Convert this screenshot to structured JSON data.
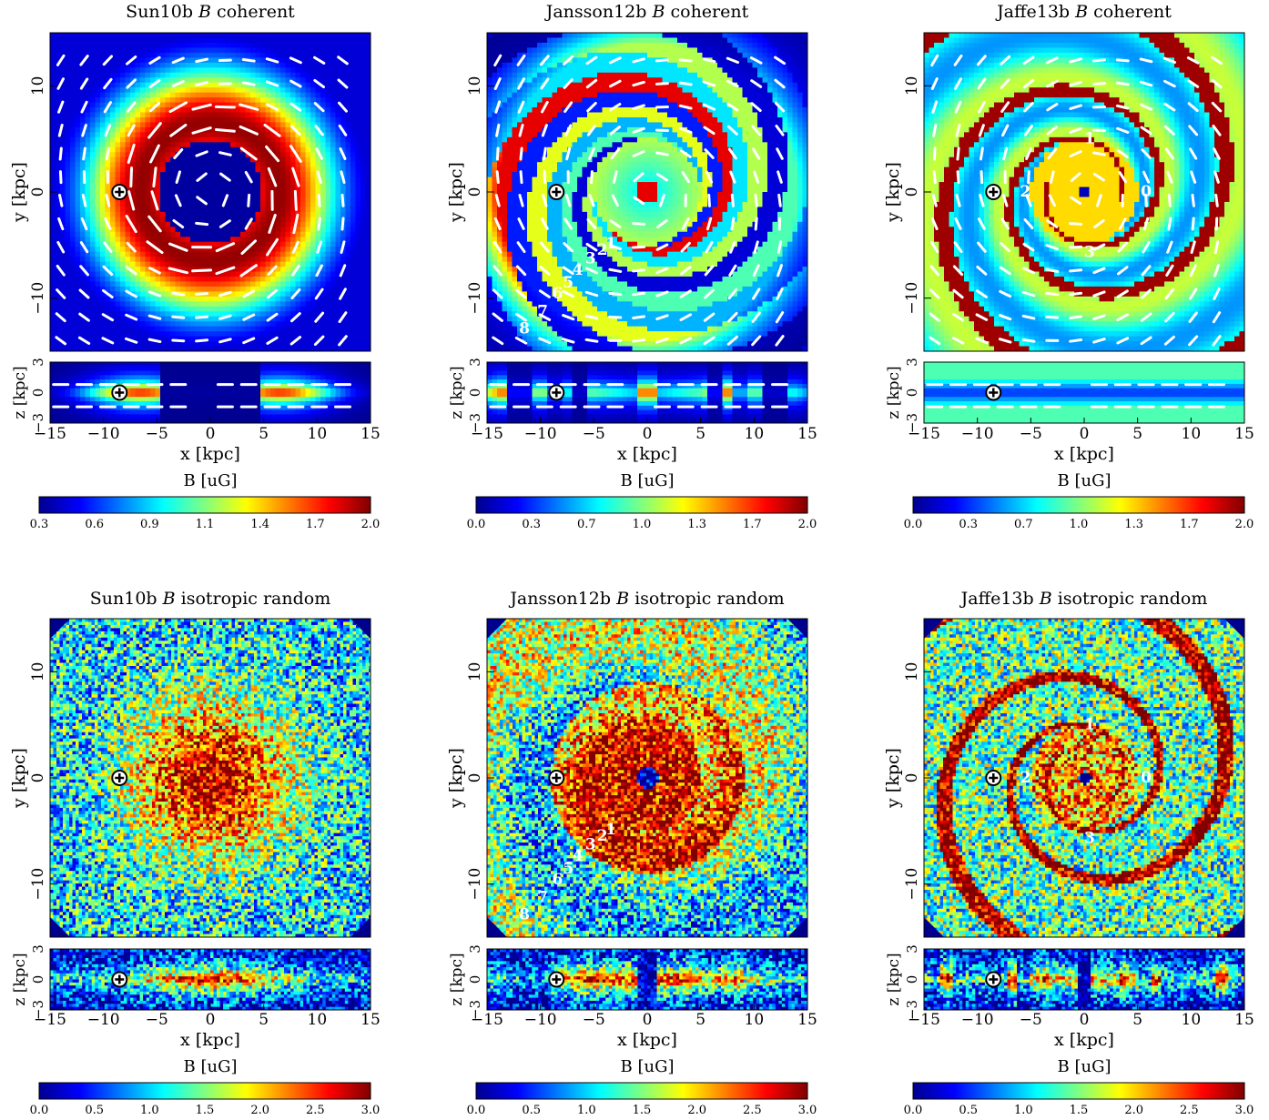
{
  "colormap": [
    "#00008f",
    "#0000ff",
    "#0080ff",
    "#00ffff",
    "#80ff80",
    "#ffff00",
    "#ff8000",
    "#ff0000",
    "#800000"
  ],
  "units": {
    "x_label": "x [kpc]",
    "y_label": "y [kpc]",
    "z_label": "z [kpc]",
    "colorbar_label": "B [uG]"
  },
  "sun_marker": {
    "x": -8.5,
    "y": 0,
    "z": 0
  },
  "chart_data": [
    {
      "id": "sun10b-coherent",
      "type": "heatmap",
      "pattern": "ring",
      "title_model": "Sun10b",
      "title_kind": "coherent",
      "xlim": [
        -15,
        15
      ],
      "ylim": [
        -15,
        15
      ],
      "zlim": [
        -3,
        3
      ],
      "xticks": [
        "−15",
        "−10",
        "−5",
        "0",
        "5",
        "10",
        "15"
      ],
      "yticks": [
        "10",
        "0",
        "−10"
      ],
      "zticks": [
        "3",
        "0",
        "−3"
      ],
      "colorbar_ticks": [
        "0.3",
        "0.6",
        "0.9",
        "1.1",
        "1.4",
        "1.7",
        "2.0"
      ],
      "colorbar_range": [
        0.3,
        2.0
      ],
      "vectors": true,
      "arm_labels": []
    },
    {
      "id": "jansson12b-coherent",
      "type": "heatmap",
      "pattern": "spiral-bands",
      "title_model": "Jansson12b",
      "title_kind": "coherent",
      "xlim": [
        -15,
        15
      ],
      "ylim": [
        -15,
        15
      ],
      "zlim": [
        -3,
        3
      ],
      "xticks": [
        "−15",
        "−10",
        "−5",
        "0",
        "5",
        "10",
        "15"
      ],
      "yticks": [
        "10",
        "0",
        "−10"
      ],
      "zticks": [
        "3",
        "0",
        "−3"
      ],
      "colorbar_ticks": [
        "0.0",
        "0.3",
        "0.7",
        "1.0",
        "1.3",
        "1.7",
        "2.0"
      ],
      "colorbar_range": [
        0.0,
        2.0
      ],
      "vectors": true,
      "arm_labels": [
        {
          "text": "1",
          "x": -3.4,
          "y": -4.8
        },
        {
          "text": "2",
          "x": -4.2,
          "y": -5.4
        },
        {
          "text": "3",
          "x": -5.3,
          "y": -6.2
        },
        {
          "text": "4",
          "x": -6.5,
          "y": -7.3
        },
        {
          "text": "5",
          "x": -7.4,
          "y": -8.5
        },
        {
          "text": "6",
          "x": -8.4,
          "y": -9.5
        },
        {
          "text": "7",
          "x": -9.8,
          "y": -11.2
        },
        {
          "text": "8",
          "x": -11.5,
          "y": -12.8
        }
      ]
    },
    {
      "id": "jaffe13b-coherent",
      "type": "heatmap",
      "pattern": "spiral-arms",
      "title_model": "Jaffe13b",
      "title_kind": "coherent",
      "xlim": [
        -15,
        15
      ],
      "ylim": [
        -15,
        15
      ],
      "zlim": [
        -3,
        3
      ],
      "xticks": [
        "−15",
        "−10",
        "−5",
        "0",
        "5",
        "10",
        "15"
      ],
      "yticks": [
        "10",
        "0",
        "−10"
      ],
      "zticks": [
        "3",
        "0",
        "−3"
      ],
      "colorbar_ticks": [
        "0.0",
        "0.3",
        "0.7",
        "1.0",
        "1.3",
        "1.7",
        "2.0"
      ],
      "colorbar_range": [
        0.0,
        2.0
      ],
      "vectors": true,
      "arm_labels": [
        {
          "text": "0",
          "x": 5.8,
          "y": 0.1
        },
        {
          "text": "1",
          "x": 0.5,
          "y": 5.1
        },
        {
          "text": "2",
          "x": -5.5,
          "y": 0.1
        },
        {
          "text": "3",
          "x": 0.5,
          "y": -5.6
        }
      ]
    },
    {
      "id": "sun10b-random",
      "type": "heatmap",
      "pattern": "noise-disk",
      "title_model": "Sun10b",
      "title_kind": "isotropic random",
      "xlim": [
        -15,
        15
      ],
      "ylim": [
        -15,
        15
      ],
      "zlim": [
        -3,
        3
      ],
      "xticks": [
        "−15",
        "−10",
        "−5",
        "0",
        "5",
        "10",
        "15"
      ],
      "yticks": [
        "10",
        "0",
        "−10"
      ],
      "zticks": [
        "3",
        "0",
        "−3"
      ],
      "colorbar_ticks": [
        "0.0",
        "0.5",
        "1.0",
        "1.5",
        "2.0",
        "2.5",
        "3.0"
      ],
      "colorbar_range": [
        0.0,
        3.0
      ],
      "vectors": false,
      "arm_labels": []
    },
    {
      "id": "jansson12b-random",
      "type": "heatmap",
      "pattern": "noise-spiral-bands",
      "title_model": "Jansson12b",
      "title_kind": "isotropic random",
      "xlim": [
        -15,
        15
      ],
      "ylim": [
        -15,
        15
      ],
      "zlim": [
        -3,
        3
      ],
      "xticks": [
        "−15",
        "−10",
        "−5",
        "0",
        "5",
        "10",
        "15"
      ],
      "yticks": [
        "10",
        "0",
        "−10"
      ],
      "zticks": [
        "3",
        "0",
        "−3"
      ],
      "colorbar_ticks": [
        "0.0",
        "0.5",
        "1.0",
        "1.5",
        "2.0",
        "2.5",
        "3.0"
      ],
      "colorbar_range": [
        0.0,
        3.0
      ],
      "vectors": false,
      "arm_labels": [
        {
          "text": "1",
          "x": -3.4,
          "y": -4.8
        },
        {
          "text": "2",
          "x": -4.2,
          "y": -5.4
        },
        {
          "text": "3",
          "x": -5.3,
          "y": -6.2
        },
        {
          "text": "4",
          "x": -6.5,
          "y": -7.3
        },
        {
          "text": "5",
          "x": -7.4,
          "y": -8.5
        },
        {
          "text": "6",
          "x": -8.4,
          "y": -9.5
        },
        {
          "text": "7",
          "x": -9.8,
          "y": -11.2
        },
        {
          "text": "8",
          "x": -11.5,
          "y": -12.8
        }
      ]
    },
    {
      "id": "jaffe13b-random",
      "type": "heatmap",
      "pattern": "noise-spiral-arms",
      "title_model": "Jaffe13b",
      "title_kind": "isotropic random",
      "xlim": [
        -15,
        15
      ],
      "ylim": [
        -15,
        15
      ],
      "zlim": [
        -3,
        3
      ],
      "xticks": [
        "−15",
        "−10",
        "−5",
        "0",
        "5",
        "10",
        "15"
      ],
      "yticks": [
        "10",
        "0",
        "−10"
      ],
      "zticks": [
        "3",
        "0",
        "−3"
      ],
      "colorbar_ticks": [
        "0.0",
        "0.5",
        "1.0",
        "1.5",
        "2.0",
        "2.5",
        "3.0"
      ],
      "colorbar_range": [
        0.0,
        3.0
      ],
      "vectors": false,
      "arm_labels": [
        {
          "text": "0",
          "x": 5.8,
          "y": 0.1
        },
        {
          "text": "1",
          "x": 0.5,
          "y": 5.1
        },
        {
          "text": "2",
          "x": -5.5,
          "y": 0.1
        },
        {
          "text": "3",
          "x": 0.5,
          "y": -5.6
        }
      ]
    }
  ]
}
